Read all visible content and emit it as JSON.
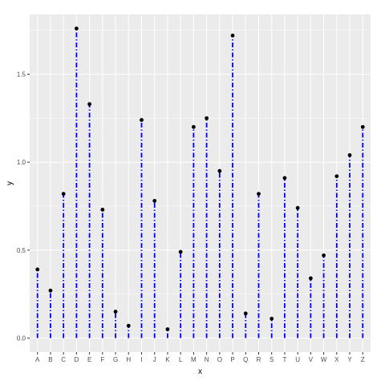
{
  "chart_data": {
    "type": "lollipop",
    "categories": [
      "A",
      "B",
      "C",
      "D",
      "E",
      "F",
      "G",
      "H",
      "I",
      "J",
      "K",
      "L",
      "M",
      "N",
      "O",
      "P",
      "Q",
      "R",
      "S",
      "T",
      "U",
      "V",
      "W",
      "X",
      "Y",
      "Z"
    ],
    "values": [
      0.39,
      0.27,
      0.82,
      1.76,
      1.33,
      0.73,
      0.15,
      0.07,
      1.24,
      0.78,
      0.05,
      0.49,
      1.2,
      1.25,
      0.95,
      1.72,
      0.14,
      0.82,
      0.11,
      0.91,
      0.74,
      0.34,
      0.47,
      0.92,
      1.04,
      1.2
    ],
    "xlabel": "x",
    "ylabel": "y",
    "ylim": [
      -0.08,
      1.84
    ],
    "yticks": [
      0.0,
      0.5,
      1.0,
      1.5
    ],
    "ytick_labels": [
      "0.0",
      "0.5",
      "1.0",
      "1.5"
    ],
    "grid": true,
    "colors": {
      "panel": "#ebebeb",
      "grid_major": "#ffffff",
      "segment": "#0000ff",
      "point": "#000000"
    }
  }
}
